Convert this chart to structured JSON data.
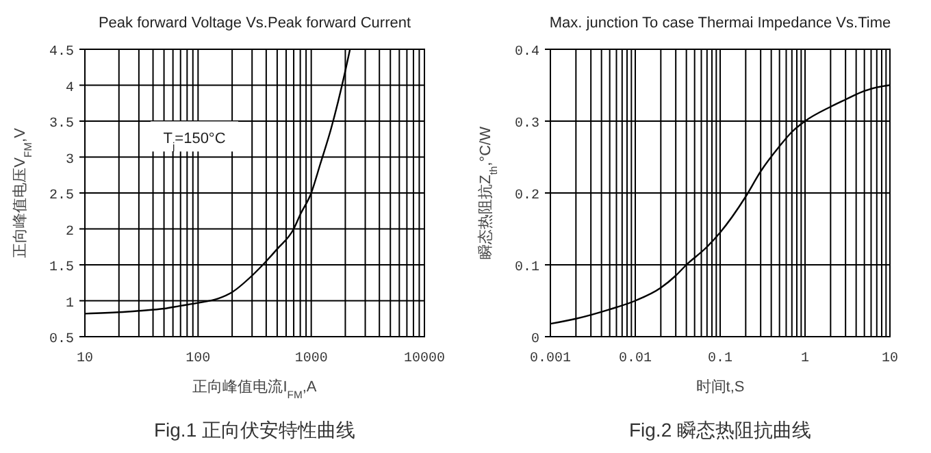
{
  "chart_data": [
    {
      "type": "line",
      "title": "Peak forward Voltage Vs.Peak forward Current",
      "xlabel": "正向峰值电流I$_{FM}$,A",
      "ylabel": "正向峰值电压V$_{FM}$,V",
      "log": "x",
      "grid": true,
      "xlim": [
        10,
        10000
      ],
      "ylim": [
        0.5,
        4.5
      ],
      "xticks": [
        10,
        {
          "value": 20,
          "label": null
        },
        {
          "value": 30,
          "label": null
        },
        {
          "value": 40,
          "label": null
        },
        {
          "value": 50,
          "label": null
        },
        {
          "value": 60,
          "label": null
        },
        {
          "value": 70,
          "label": null
        },
        {
          "value": 80,
          "label": null
        },
        {
          "value": 90,
          "label": null
        },
        100,
        {
          "value": 200,
          "label": null
        },
        {
          "value": 300,
          "label": null
        },
        {
          "value": 400,
          "label": null
        },
        {
          "value": 500,
          "label": null
        },
        {
          "value": 600,
          "label": null
        },
        {
          "value": 700,
          "label": null
        },
        {
          "value": 800,
          "label": null
        },
        {
          "value": 900,
          "label": null
        },
        1000,
        {
          "value": 2000,
          "label": null
        },
        {
          "value": 3000,
          "label": null
        },
        {
          "value": 4000,
          "label": null
        },
        {
          "value": 5000,
          "label": null
        },
        {
          "value": 6000,
          "label": null
        },
        {
          "value": 7000,
          "label": null
        },
        {
          "value": 8000,
          "label": null
        },
        {
          "value": 9000,
          "label": null
        },
        10000
      ],
      "yticks": [
        0.5,
        1,
        1.5,
        2,
        2.5,
        3,
        3.5,
        4,
        4.5
      ],
      "annotations": [
        "T$_{j}$=150°C",
        "Fig.1 正向伏安特性曲线"
      ],
      "x": [
        10,
        20,
        30,
        50,
        70,
        100,
        150,
        200,
        300,
        400,
        500,
        700,
        800,
        1000,
        1200,
        1500,
        2000,
        2200
      ],
      "series": [
        {
          "color": "#000000",
          "values": [
            0.82,
            0.84,
            0.86,
            0.89,
            0.93,
            0.97,
            1.03,
            1.12,
            1.35,
            1.55,
            1.72,
            2.0,
            2.2,
            2.5,
            2.9,
            3.4,
            4.2,
            4.5
          ]
        }
      ]
    },
    {
      "type": "line",
      "title": "Max. junction To case Thermai Impedance Vs.Time",
      "xlabel": "时间t,S",
      "ylabel": "瞬态热阻抗Z$_{th}$,°C/W",
      "log": "x",
      "grid": true,
      "xlim": [
        0.001,
        10
      ],
      "ylim": [
        0,
        0.4
      ],
      "xticks": [
        0.001,
        {
          "value": 0.002,
          "label": null
        },
        {
          "value": 0.003,
          "label": null
        },
        {
          "value": 0.004,
          "label": null
        },
        {
          "value": 0.005,
          "label": null
        },
        {
          "value": 0.006,
          "label": null
        },
        {
          "value": 0.007,
          "label": null
        },
        {
          "value": 0.008,
          "label": null
        },
        {
          "value": 0.009,
          "label": null
        },
        0.01,
        {
          "value": 0.02,
          "label": null
        },
        {
          "value": 0.03,
          "label": null
        },
        {
          "value": 0.04,
          "label": null
        },
        {
          "value": 0.05,
          "label": null
        },
        {
          "value": 0.06,
          "label": null
        },
        {
          "value": 0.07,
          "label": null
        },
        {
          "value": 0.08,
          "label": null
        },
        {
          "value": 0.09,
          "label": null
        },
        0.1,
        {
          "value": 0.2,
          "label": null
        },
        {
          "value": 0.3,
          "label": null
        },
        {
          "value": 0.4,
          "label": null
        },
        {
          "value": 0.5,
          "label": null
        },
        {
          "value": 0.6,
          "label": null
        },
        {
          "value": 0.7,
          "label": null
        },
        {
          "value": 0.8,
          "label": null
        },
        {
          "value": 0.9,
          "label": null
        },
        1,
        {
          "value": 2,
          "label": null
        },
        {
          "value": 3,
          "label": null
        },
        {
          "value": 4,
          "label": null
        },
        {
          "value": 5,
          "label": null
        },
        {
          "value": 6,
          "label": null
        },
        {
          "value": 7,
          "label": null
        },
        {
          "value": 8,
          "label": null
        },
        {
          "value": 9,
          "label": null
        },
        10
      ],
      "yticks": [
        0,
        0.1,
        0.2,
        0.3,
        0.4
      ],
      "annotations": [
        "Fig.2 瞬态热阻抗曲线"
      ],
      "x": [
        0.001,
        0.002,
        0.005,
        0.01,
        0.02,
        0.03,
        0.04,
        0.07,
        0.1,
        0.2,
        0.3,
        0.5,
        0.7,
        1,
        2,
        3,
        5,
        7,
        10
      ],
      "series": [
        {
          "color": "#000000",
          "values": [
            0.018,
            0.025,
            0.038,
            0.05,
            0.068,
            0.085,
            0.1,
            0.125,
            0.145,
            0.195,
            0.23,
            0.265,
            0.285,
            0.3,
            0.32,
            0.33,
            0.342,
            0.347,
            0.35
          ]
        }
      ]
    }
  ]
}
